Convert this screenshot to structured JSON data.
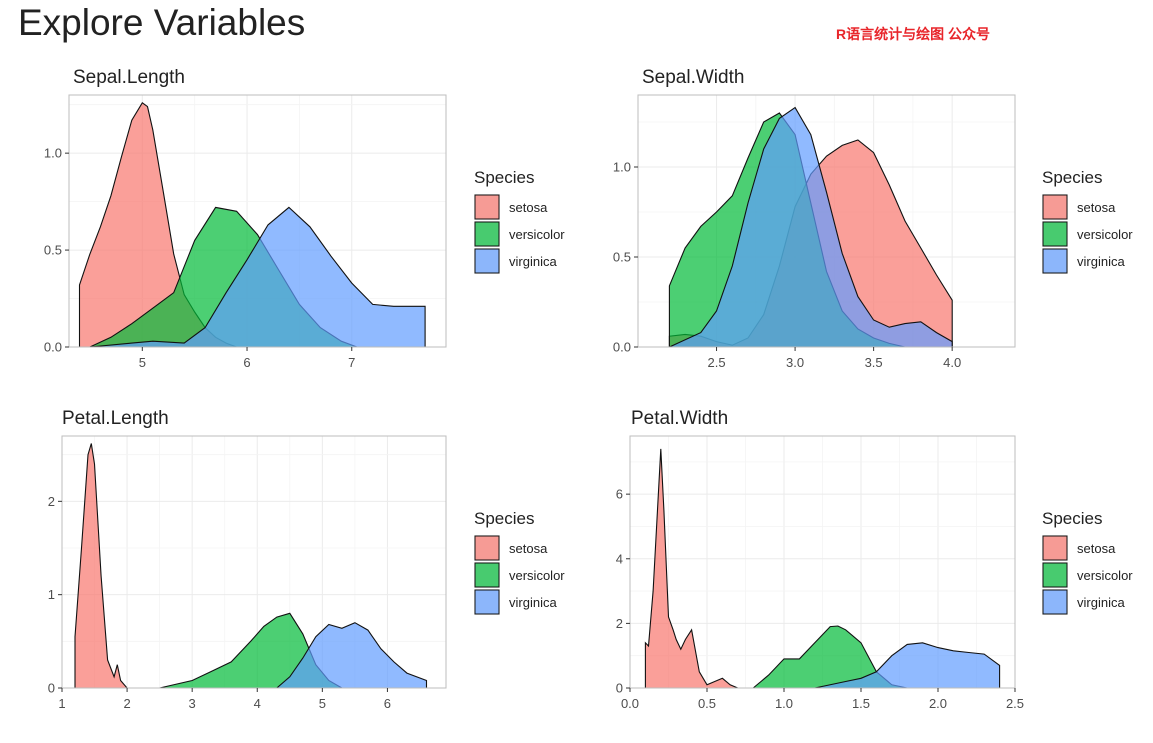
{
  "page": {
    "title": "Explore Variables",
    "watermark": "R语言统计与绘图 公众号"
  },
  "legend": {
    "title": "Species",
    "entries": [
      "setosa",
      "versicolor",
      "virginica"
    ]
  },
  "colors": {
    "setosa": "#F8766D",
    "versicolor": "#00BA38",
    "virginica": "#619CFF",
    "overlap": "#5B9BD5",
    "panel_border": "#bdbdbd",
    "grid": "#ebebeb"
  },
  "chart_data": [
    {
      "type": "area",
      "subtype": "density",
      "title": "Sepal.Length",
      "xlabel": "",
      "ylabel": "",
      "xlim": [
        4.3,
        7.9
      ],
      "ylim": [
        0,
        1.3
      ],
      "xticks": [
        5,
        6,
        7
      ],
      "xtick_labels": [
        "5",
        "6",
        "7"
      ],
      "yticks": [
        0,
        0.5,
        1.0
      ],
      "ytick_labels": [
        "0.0",
        "0.5",
        "1.0"
      ],
      "grid": true,
      "series": [
        {
          "name": "setosa",
          "x": [
            4.4,
            4.5,
            4.6,
            4.7,
            4.8,
            4.9,
            5.0,
            5.05,
            5.1,
            5.2,
            5.3,
            5.4,
            5.5,
            5.6,
            5.7,
            5.8,
            5.9
          ],
          "y": [
            0.32,
            0.48,
            0.62,
            0.78,
            0.98,
            1.17,
            1.26,
            1.24,
            1.12,
            0.8,
            0.48,
            0.27,
            0.18,
            0.1,
            0.05,
            0.02,
            0.0
          ]
        },
        {
          "name": "versicolor",
          "x": [
            4.5,
            4.7,
            4.9,
            5.1,
            5.3,
            5.5,
            5.7,
            5.9,
            6.1,
            6.3,
            6.5,
            6.7,
            6.9,
            7.05
          ],
          "y": [
            0.0,
            0.05,
            0.12,
            0.2,
            0.28,
            0.55,
            0.72,
            0.7,
            0.58,
            0.4,
            0.22,
            0.1,
            0.03,
            0.0
          ]
        },
        {
          "name": "virginica",
          "x": [
            4.5,
            4.9,
            5.1,
            5.4,
            5.6,
            5.8,
            6.0,
            6.2,
            6.4,
            6.6,
            6.8,
            7.0,
            7.2,
            7.4,
            7.6,
            7.7
          ],
          "y": [
            0.0,
            0.02,
            0.03,
            0.02,
            0.1,
            0.28,
            0.45,
            0.63,
            0.72,
            0.62,
            0.47,
            0.33,
            0.22,
            0.21,
            0.21,
            0.21
          ]
        }
      ]
    },
    {
      "type": "area",
      "subtype": "density",
      "title": "Sepal.Width",
      "xlabel": "",
      "ylabel": "",
      "xlim": [
        2.0,
        4.4
      ],
      "ylim": [
        0,
        1.4
      ],
      "xticks": [
        2.5,
        3.0,
        3.5,
        4.0
      ],
      "xtick_labels": [
        "2.5",
        "3.0",
        "3.5",
        "4.0"
      ],
      "yticks": [
        0,
        0.5,
        1.0
      ],
      "ytick_labels": [
        "0.0",
        "0.5",
        "1.0"
      ],
      "grid": true,
      "series": [
        {
          "name": "setosa",
          "x": [
            2.2,
            2.3,
            2.4,
            2.5,
            2.6,
            2.7,
            2.8,
            2.9,
            3.0,
            3.1,
            3.2,
            3.3,
            3.4,
            3.5,
            3.6,
            3.7,
            3.8,
            3.9,
            4.0
          ],
          "y": [
            0.06,
            0.07,
            0.06,
            0.03,
            0.01,
            0.05,
            0.18,
            0.45,
            0.78,
            0.96,
            1.06,
            1.12,
            1.15,
            1.08,
            0.9,
            0.7,
            0.55,
            0.4,
            0.26
          ]
        },
        {
          "name": "versicolor",
          "x": [
            2.2,
            2.3,
            2.4,
            2.5,
            2.6,
            2.7,
            2.8,
            2.9,
            3.0,
            3.1,
            3.2,
            3.3,
            3.4,
            3.5,
            3.6,
            3.7
          ],
          "y": [
            0.34,
            0.55,
            0.67,
            0.75,
            0.84,
            1.05,
            1.25,
            1.3,
            1.18,
            0.8,
            0.42,
            0.2,
            0.1,
            0.05,
            0.02,
            0.0
          ]
        },
        {
          "name": "virginica",
          "x": [
            2.2,
            2.4,
            2.5,
            2.6,
            2.7,
            2.8,
            2.9,
            3.0,
            3.1,
            3.2,
            3.3,
            3.4,
            3.5,
            3.6,
            3.7,
            3.8,
            3.9,
            4.0
          ],
          "y": [
            0.0,
            0.08,
            0.2,
            0.45,
            0.8,
            1.1,
            1.27,
            1.33,
            1.18,
            0.86,
            0.52,
            0.28,
            0.15,
            0.11,
            0.13,
            0.14,
            0.08,
            0.03
          ]
        }
      ]
    },
    {
      "type": "area",
      "subtype": "density",
      "title": "Petal.Length",
      "xlabel": "",
      "ylabel": "",
      "xlim": [
        1.0,
        6.9
      ],
      "ylim": [
        0,
        2.7
      ],
      "xticks": [
        1,
        2,
        3,
        4,
        5,
        6
      ],
      "xtick_labels": [
        "1",
        "2",
        "3",
        "4",
        "5",
        "6"
      ],
      "yticks": [
        0,
        1,
        2
      ],
      "ytick_labels": [
        "0",
        "1",
        "2"
      ],
      "grid": true,
      "series": [
        {
          "name": "setosa",
          "x": [
            1.2,
            1.3,
            1.4,
            1.45,
            1.5,
            1.6,
            1.7,
            1.8,
            1.85,
            1.9,
            2.0
          ],
          "y": [
            0.55,
            1.5,
            2.5,
            2.62,
            2.4,
            1.2,
            0.3,
            0.12,
            0.25,
            0.08,
            0.0
          ]
        },
        {
          "name": "versicolor",
          "x": [
            2.5,
            3.0,
            3.3,
            3.6,
            3.9,
            4.1,
            4.3,
            4.5,
            4.7,
            4.9,
            5.1,
            5.3
          ],
          "y": [
            0.0,
            0.08,
            0.18,
            0.28,
            0.5,
            0.66,
            0.76,
            0.8,
            0.58,
            0.25,
            0.08,
            0.0
          ]
        },
        {
          "name": "virginica",
          "x": [
            4.3,
            4.5,
            4.7,
            4.9,
            5.1,
            5.3,
            5.5,
            5.7,
            5.9,
            6.1,
            6.3,
            6.6
          ],
          "y": [
            0.0,
            0.12,
            0.32,
            0.55,
            0.68,
            0.64,
            0.7,
            0.62,
            0.42,
            0.28,
            0.16,
            0.08
          ]
        }
      ]
    },
    {
      "type": "area",
      "subtype": "density",
      "title": "Petal.Width",
      "xlabel": "",
      "ylabel": "",
      "xlim": [
        0.0,
        2.5
      ],
      "ylim": [
        0,
        7.8
      ],
      "xticks": [
        0.0,
        0.5,
        1.0,
        1.5,
        2.0,
        2.5
      ],
      "xtick_labels": [
        "0.0",
        "0.5",
        "1.0",
        "1.5",
        "2.0",
        "2.5"
      ],
      "yticks": [
        0,
        2,
        4,
        6
      ],
      "ytick_labels": [
        "0",
        "2",
        "4",
        "6"
      ],
      "grid": true,
      "series": [
        {
          "name": "setosa",
          "x": [
            0.1,
            0.12,
            0.15,
            0.2,
            0.22,
            0.25,
            0.28,
            0.3,
            0.33,
            0.36,
            0.4,
            0.45,
            0.5,
            0.55,
            0.6,
            0.65,
            0.7
          ],
          "y": [
            1.4,
            1.3,
            3.0,
            7.4,
            5.5,
            2.2,
            1.8,
            1.5,
            1.2,
            1.5,
            1.8,
            0.5,
            0.1,
            0.2,
            0.3,
            0.1,
            0.0
          ]
        },
        {
          "name": "versicolor",
          "x": [
            0.8,
            0.9,
            1.0,
            1.1,
            1.2,
            1.3,
            1.35,
            1.4,
            1.5,
            1.6,
            1.7,
            1.8
          ],
          "y": [
            0.0,
            0.4,
            0.9,
            0.9,
            1.4,
            1.9,
            1.92,
            1.8,
            1.4,
            0.5,
            0.1,
            0.0
          ]
        },
        {
          "name": "virginica",
          "x": [
            1.2,
            1.4,
            1.5,
            1.6,
            1.7,
            1.8,
            1.9,
            2.0,
            2.1,
            2.2,
            2.3,
            2.4
          ],
          "y": [
            0.0,
            0.2,
            0.3,
            0.5,
            1.0,
            1.35,
            1.4,
            1.25,
            1.15,
            1.1,
            1.05,
            0.7
          ]
        }
      ]
    }
  ]
}
